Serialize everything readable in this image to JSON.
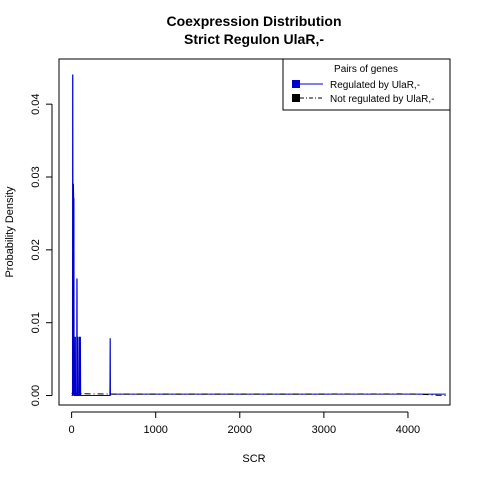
{
  "chart_data": {
    "type": "line",
    "title": "Coexpression Distribution",
    "subtitle": "Strict Regulon UlaR,-",
    "xlabel": "SCR",
    "ylabel": "Probability Density",
    "xlim": [
      -150,
      4500
    ],
    "ylim": [
      -0.0013,
      0.0462
    ],
    "x_ticks": [
      0,
      1000,
      2000,
      3000,
      4000
    ],
    "x_tick_labels": [
      "0",
      "1000",
      "2000",
      "3000",
      "4000"
    ],
    "y_ticks": [
      0.0,
      0.01,
      0.02,
      0.03,
      0.04
    ],
    "y_tick_labels": [
      "0.00",
      "0.01",
      "0.02",
      "0.03",
      "0.04"
    ],
    "grid": false,
    "legend": {
      "title": "Pairs of genes",
      "placement": "top-right",
      "entries": [
        "Regulated by  UlaR,-",
        "Not regulated by  UlaR,-"
      ]
    },
    "series": [
      {
        "name": "Regulated by  UlaR,-",
        "color": "#0000cc",
        "style": "solid",
        "x": [
          0,
          5,
          10,
          12,
          15,
          18,
          20,
          22,
          25,
          28,
          30,
          35,
          40,
          42,
          45,
          47,
          50,
          55,
          60,
          62,
          65,
          68,
          70,
          72,
          75,
          78,
          80,
          85,
          90,
          92,
          95,
          98,
          100,
          102,
          105,
          108,
          110,
          115,
          455,
          458,
          460,
          462,
          465,
          470,
          4450
        ],
        "y": [
          0,
          0,
          0,
          0.044,
          0.044,
          0,
          0.029,
          0.029,
          0.027,
          0.027,
          0,
          0,
          0,
          0.008,
          0.008,
          0,
          0,
          0,
          0,
          0.016,
          0.016,
          0,
          0,
          0.008,
          0.008,
          0,
          0,
          0,
          0,
          0.008,
          0.008,
          0,
          0,
          0.008,
          0.008,
          0,
          0,
          0,
          0,
          0.0078,
          0.0078,
          0,
          0.0002,
          0.0002,
          0.0002
        ]
      },
      {
        "name": "Not regulated by  UlaR,-",
        "color": "#000000",
        "style": "dashdot",
        "x": [
          0,
          100,
          500,
          1000,
          2000,
          3000,
          3500,
          3900,
          4100,
          4250,
          4350,
          4450
        ],
        "y": [
          0.0003,
          0.00025,
          0.0002,
          0.0002,
          0.0002,
          0.0002,
          0.00021,
          0.00022,
          0.0002,
          0.00012,
          3e-05,
          0.0
        ]
      }
    ]
  }
}
